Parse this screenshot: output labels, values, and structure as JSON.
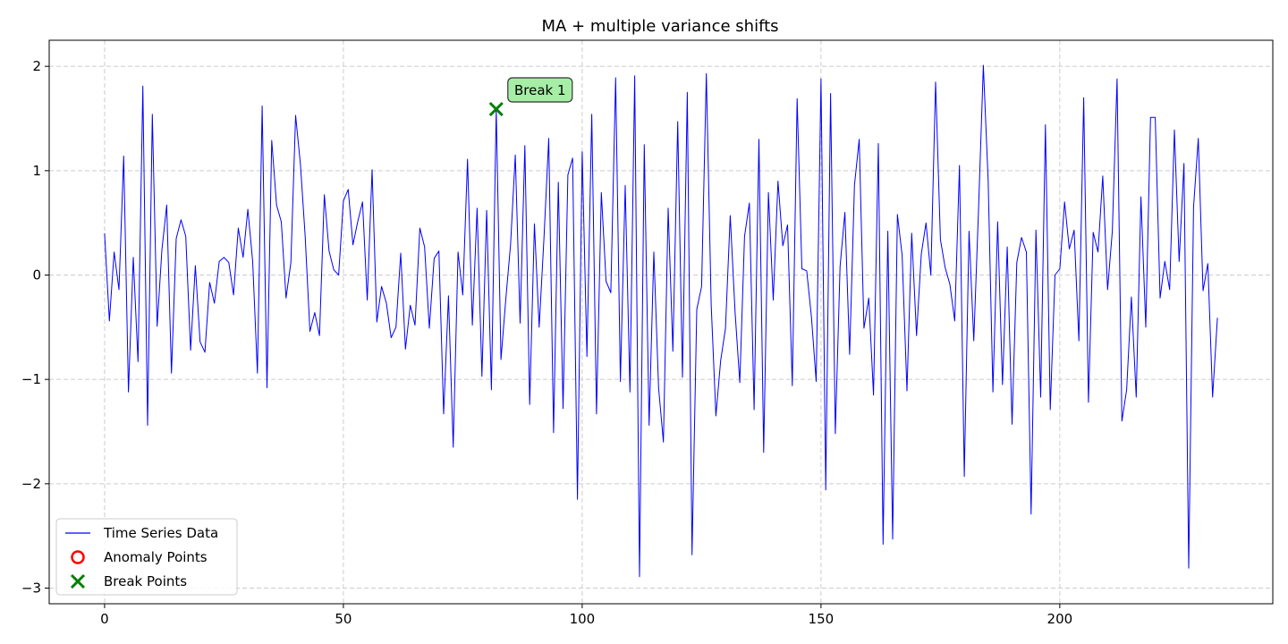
{
  "chart_data": {
    "type": "line",
    "title": "MA + multiple variance shifts",
    "xlabel": "",
    "ylabel": "",
    "xlim": [
      -11.6,
      244.6
    ],
    "ylim": [
      -3.15,
      2.25
    ],
    "x_ticks": [
      0,
      50,
      100,
      150,
      200
    ],
    "y_ticks": [
      -3,
      -2,
      -1,
      0,
      1,
      2
    ],
    "x_tick_labels": [
      "0",
      "50",
      "100",
      "150",
      "200"
    ],
    "y_tick_labels": [
      "−3",
      "−2",
      "−1",
      "0",
      "1",
      "2"
    ],
    "grid": true,
    "legend_position": "lower-left",
    "legend": [
      {
        "label": "Time Series Data",
        "marker": "line",
        "color": "#0000ff"
      },
      {
        "label": "Anomaly Points",
        "marker": "circle",
        "color": "#ff0000"
      },
      {
        "label": "Break Points",
        "marker": "x",
        "color": "#008000"
      }
    ],
    "series": [
      {
        "name": "Time Series Data",
        "color": "#0000ff",
        "x_start": 0,
        "x_step": 1,
        "values": [
          0.4,
          -0.44,
          0.22,
          -0.14,
          1.14,
          -1.12,
          0.17,
          -0.83,
          1.81,
          -1.44,
          1.54,
          -0.49,
          0.24,
          0.67,
          -0.94,
          0.35,
          0.53,
          0.37,
          -0.72,
          0.09,
          -0.64,
          -0.74,
          -0.07,
          -0.27,
          0.13,
          0.17,
          0.12,
          -0.19,
          0.45,
          0.17,
          0.63,
          0.13,
          -0.94,
          1.62,
          -1.08,
          1.29,
          0.67,
          0.51,
          -0.22,
          0.12,
          1.53,
          1.06,
          0.37,
          -0.54,
          -0.36,
          -0.58,
          0.77,
          0.23,
          0.05,
          0.0,
          0.71,
          0.82,
          0.29,
          0.51,
          0.7,
          -0.24,
          1.01,
          -0.45,
          -0.11,
          -0.27,
          -0.6,
          -0.5,
          0.21,
          -0.71,
          -0.29,
          -0.48,
          0.45,
          0.27,
          -0.51,
          0.16,
          0.23,
          -1.33,
          -0.2,
          -1.65,
          0.22,
          -0.19,
          1.11,
          -0.48,
          0.64,
          -0.97,
          0.62,
          -1.1,
          1.59,
          -0.81,
          -0.23,
          0.29,
          1.15,
          -0.46,
          1.24,
          -1.24,
          0.49,
          -0.5,
          0.36,
          1.31,
          -1.51,
          0.89,
          -1.28,
          0.96,
          1.12,
          -2.15,
          1.18,
          -0.78,
          1.54,
          -1.33,
          0.79,
          -0.06,
          -0.17,
          1.89,
          -1.02,
          0.86,
          -1.12,
          1.91,
          -2.89,
          1.25,
          -1.44,
          0.22,
          -1.08,
          -1.6,
          0.64,
          -0.73,
          1.47,
          -0.98,
          1.75,
          -2.68,
          -0.33,
          -0.11,
          1.93,
          -0.28,
          -1.35,
          -0.82,
          -0.51,
          0.57,
          -0.35,
          -1.03,
          0.37,
          0.69,
          -1.29,
          1.3,
          -1.7,
          0.79,
          -0.24,
          0.9,
          0.28,
          0.48,
          -1.06,
          1.69,
          0.06,
          0.04,
          -0.4,
          -1.02,
          1.88,
          -2.06,
          1.74,
          -1.52,
          0.08,
          0.6,
          -0.76,
          0.86,
          1.3,
          -0.51,
          -0.22,
          -1.15,
          1.26,
          -2.58,
          0.42,
          -2.53,
          0.58,
          0.19,
          -1.11,
          0.4,
          -0.58,
          0.2,
          0.5,
          0.0,
          1.85,
          0.34,
          0.07,
          -0.09,
          -0.44,
          1.05,
          -1.93,
          0.42,
          -0.63,
          0.65,
          2.01,
          0.9,
          -1.12,
          0.51,
          -1.05,
          0.27,
          -1.43,
          0.12,
          0.36,
          0.22,
          -2.29,
          0.43,
          -1.17,
          1.44,
          -1.29,
          0.0,
          0.06,
          0.7,
          0.25,
          0.43,
          -0.63,
          1.7,
          -1.22,
          0.41,
          0.22,
          0.95,
          -0.14,
          0.42,
          1.88,
          -1.4,
          -1.1,
          -0.21,
          -1.17,
          0.75,
          -0.5,
          1.51,
          1.51,
          -0.22,
          0.13,
          -0.14,
          1.39,
          0.13,
          1.07,
          -2.81,
          0.65,
          1.31,
          -0.15,
          0.11,
          -1.17,
          -0.41
        ]
      }
    ],
    "anomaly_points": [],
    "break_points": [
      {
        "x": 82,
        "y": 1.59,
        "label": "Break 1"
      }
    ]
  }
}
